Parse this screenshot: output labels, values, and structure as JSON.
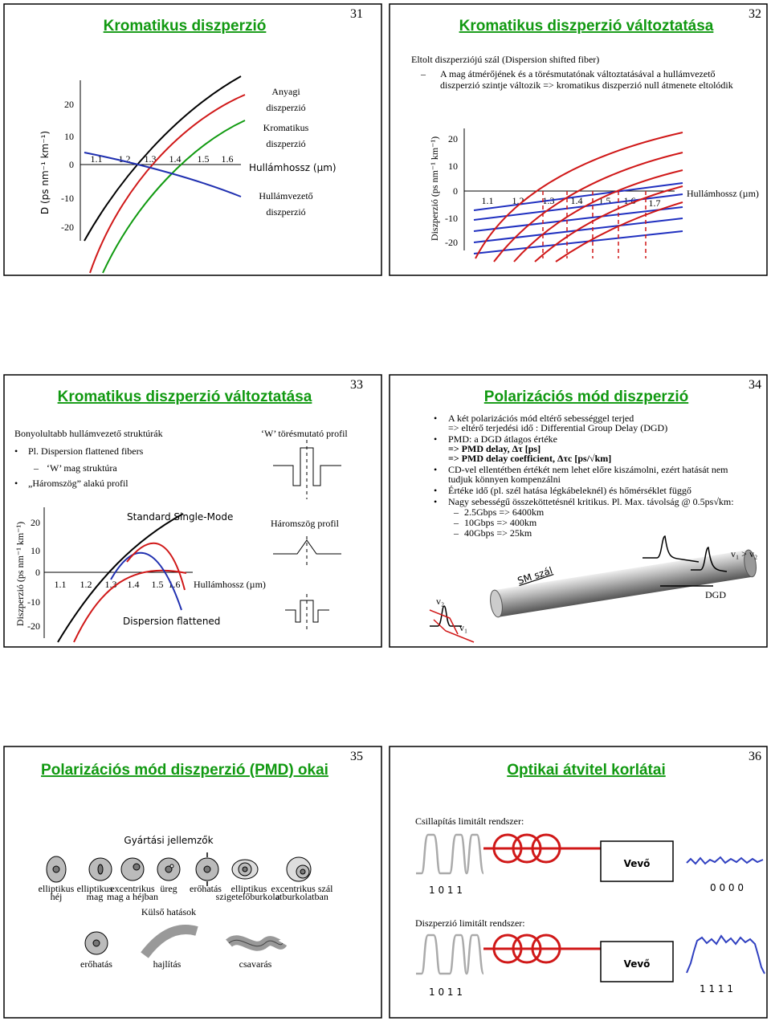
{
  "slides": [
    {
      "number": "31",
      "title": "Kromatikus diszperzió",
      "chart": {
        "y_label": "D (ps nm⁻¹ km⁻¹)",
        "yticks": [
          "20",
          "10",
          "0",
          "-10",
          "-20"
        ],
        "xticks": [
          "1.1",
          "1.2",
          "1.3",
          "1.4",
          "1.5",
          "1.6"
        ],
        "x_label": "Hullámhossz (µm)"
      },
      "labels": [
        [
          "Anyagi",
          "diszperzió"
        ],
        [
          "Kromatikus",
          "diszperzió"
        ],
        [
          "Hullámvezető",
          "diszperzió"
        ]
      ]
    },
    {
      "number": "32",
      "title": "Kromatikus diszperzió változtatása",
      "subtitle": "Eltolt diszperziójú szál (Dispersion shifted fiber)",
      "bullet": [
        "A mag átmérőjének és a törésmutatónak változtatásával a hullámvezető",
        "diszperzió szintje változik => kromatikus diszperzió null átmenete eltolódik"
      ],
      "chart": {
        "y_label": "Diszperzió (ps nm⁻¹ km⁻¹)",
        "yticks": [
          "20",
          "10",
          "0",
          "-10",
          "-20"
        ],
        "xticks": [
          "1.1",
          "1.2",
          "1.3",
          "1.4",
          "1.5",
          "1.6",
          "1.7"
        ],
        "x_label": "Hullámhossz (µm)"
      }
    },
    {
      "number": "33",
      "title": "Kromatikus diszperzió változtatása",
      "intro": "Bonyolultabb hullámvezető struktúrák",
      "bullet_1": "Pl. Dispersion flattened fibers",
      "sub_bullet": "‘W’ mag struktúra",
      "bullet_2": "„Háromszög” alakú profil",
      "profile_w": "‘W’ törésmutató profil",
      "profile_triangle": "Háromszög profil",
      "chart": {
        "y_label": "Diszperzió (ps nm⁻¹ km⁻¹)",
        "yticks": [
          "20",
          "10",
          "0",
          "-10",
          "-20"
        ],
        "xticks": [
          "1.1",
          "1.2",
          "1.3",
          "1.4",
          "1.5",
          "1.6"
        ],
        "x_label": "Hullámhossz (µm)",
        "standard": "Standard Single-Mode",
        "flattened": "Dispersion flattened"
      }
    },
    {
      "number": "34",
      "title": "Polarizációs mód diszperzió",
      "bullets": [
        [
          "A két polarizációs mód eltérő sebességgel terjed",
          "=> eltérő terjedési idő : Differential Group Delay (DGD)"
        ],
        [
          "PMD: a DGD átlagos értéke",
          "=> PMD delay, Δτ [ps]",
          "=> PMD delay coefficient, Δτc [ps/√km]"
        ],
        [
          "CD-vel ellentétben értékét nem lehet előre kiszámolni, ezért hatását nem",
          "tudjuk könnyen kompenzálni"
        ],
        [
          "Értéke idő (pl. szél hatása légkábeleknél) és hőmérséklet függő"
        ],
        [
          "Nagy sebességű összeköttetésnél kritikus. Pl. Max. távolság @ 0.5ps√km:"
        ]
      ],
      "sub_items": [
        "2.5Gbps => 6400km",
        "10Gbps => 400km",
        "40Gbps => 25km"
      ],
      "diagram": {
        "fiber": "SM szál",
        "v2": "v₂",
        "v1": "v₁",
        "dgd": "DGD",
        "relation": "v₁ > v₂"
      }
    },
    {
      "number": "35",
      "title": "Polarizációs mód diszperzió (PMD) okai",
      "manufacturing": "Gyártási jellemzők",
      "manufacturing_items": [
        [
          "elliptikus",
          "héj"
        ],
        [
          "elliptikus",
          "mag"
        ],
        [
          "excentrikus",
          "mag a héjban"
        ],
        [
          "üreg"
        ],
        [
          "erőhatás"
        ],
        [
          "elliptikus",
          "szigetelőburkolat"
        ],
        [
          "excentrikus szál",
          "a burkolatban"
        ]
      ],
      "external": "Külső hatások",
      "external_items": [
        "erőhatás",
        "hajlítás",
        "csavarás"
      ]
    },
    {
      "number": "36",
      "title": "Optikai átvitel korlátai",
      "attenuation": {
        "heading": "Csillapítás limitált rendszer:",
        "receiver": "Vevő",
        "input": "1 0 1 1",
        "output": "0 0 0 0"
      },
      "dispersion": {
        "heading": "Diszperzió limitált rendszer:",
        "receiver": "Vevő",
        "input": "1 0 1 1",
        "output": "1 1 1 1"
      }
    }
  ]
}
